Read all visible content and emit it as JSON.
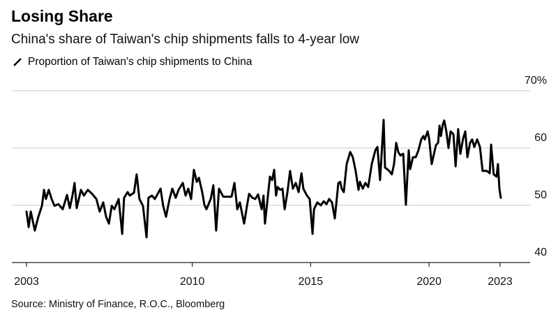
{
  "header": {
    "title": "Losing Share",
    "subtitle": "China's share of Taiwan's chip shipments falls to 4-year low"
  },
  "footer": {
    "source": "Source: Ministry of Finance, R.O.C., Bloomberg"
  },
  "chart_data": {
    "type": "line",
    "title": "Losing Share",
    "subtitle": "China's share of Taiwan's chip shipments falls to 4-year low",
    "legend": [
      {
        "name": "Proportion of Taiwan's chip shipments to China",
        "color": "#000000"
      }
    ],
    "legend_placement": "top-left",
    "xlabel": "",
    "ylabel": "",
    "xlim": [
      2003,
      2024.3
    ],
    "ylim": [
      40,
      70
    ],
    "yticks": [
      {
        "value": 40,
        "label": "40"
      },
      {
        "value": 50,
        "label": "50"
      },
      {
        "value": 60,
        "label": "60"
      },
      {
        "value": 70,
        "label": "70%"
      }
    ],
    "xticks": [
      {
        "value": 2003,
        "label": "2003"
      },
      {
        "value": 2010,
        "label": "2010"
      },
      {
        "value": 2015,
        "label": "2015"
      },
      {
        "value": 2020,
        "label": "2020"
      },
      {
        "value": 2023,
        "label": "2023"
      }
    ],
    "grid": true,
    "yaxis_side": "right",
    "series": [
      {
        "name": "Proportion of Taiwan's chip shipments to China",
        "color": "#000000",
        "points": [
          [
            2003.0,
            48.9
          ],
          [
            2003.09,
            46.2
          ],
          [
            2003.18,
            48.9
          ],
          [
            2003.35,
            45.6
          ],
          [
            2003.5,
            48.0
          ],
          [
            2003.65,
            49.9
          ],
          [
            2003.74,
            52.7
          ],
          [
            2003.82,
            51.1
          ],
          [
            2003.94,
            52.7
          ],
          [
            2004.06,
            51.1
          ],
          [
            2004.18,
            49.9
          ],
          [
            2004.35,
            50.2
          ],
          [
            2004.53,
            49.3
          ],
          [
            2004.71,
            51.8
          ],
          [
            2004.83,
            49.5
          ],
          [
            2004.94,
            51.7
          ],
          [
            2005.03,
            53.9
          ],
          [
            2005.12,
            49.5
          ],
          [
            2005.21,
            51.1
          ],
          [
            2005.3,
            52.7
          ],
          [
            2005.42,
            51.7
          ],
          [
            2005.59,
            52.7
          ],
          [
            2005.77,
            52.0
          ],
          [
            2005.95,
            51.1
          ],
          [
            2006.09,
            48.9
          ],
          [
            2006.24,
            50.5
          ],
          [
            2006.36,
            48.0
          ],
          [
            2006.48,
            46.8
          ],
          [
            2006.6,
            49.9
          ],
          [
            2006.71,
            49.3
          ],
          [
            2006.89,
            51.1
          ],
          [
            2007.04,
            45.0
          ],
          [
            2007.12,
            51.3
          ],
          [
            2007.27,
            52.3
          ],
          [
            2007.36,
            51.7
          ],
          [
            2007.54,
            52.2
          ],
          [
            2007.65,
            55.4
          ],
          [
            2007.77,
            51.1
          ],
          [
            2007.92,
            49.9
          ],
          [
            2008.07,
            44.4
          ],
          [
            2008.15,
            51.3
          ],
          [
            2008.3,
            51.7
          ],
          [
            2008.42,
            51.1
          ],
          [
            2008.66,
            52.9
          ],
          [
            2008.77,
            49.9
          ],
          [
            2008.89,
            48.0
          ],
          [
            2009.04,
            51.1
          ],
          [
            2009.16,
            52.9
          ],
          [
            2009.3,
            51.3
          ],
          [
            2009.42,
            52.7
          ],
          [
            2009.6,
            53.9
          ],
          [
            2009.72,
            51.7
          ],
          [
            2009.83,
            52.9
          ],
          [
            2009.95,
            51.1
          ],
          [
            2010.07,
            56.2
          ],
          [
            2010.19,
            54.1
          ],
          [
            2010.28,
            54.8
          ],
          [
            2010.42,
            52.3
          ],
          [
            2010.51,
            50.1
          ],
          [
            2010.6,
            49.3
          ],
          [
            2010.78,
            51.1
          ],
          [
            2010.89,
            53.5
          ],
          [
            2011.01,
            45.6
          ],
          [
            2011.13,
            52.9
          ],
          [
            2011.31,
            51.5
          ],
          [
            2011.48,
            51.5
          ],
          [
            2011.66,
            51.5
          ],
          [
            2011.78,
            53.9
          ],
          [
            2011.9,
            49.3
          ],
          [
            2012.01,
            50.5
          ],
          [
            2012.19,
            46.8
          ],
          [
            2012.31,
            49.9
          ],
          [
            2012.4,
            52.0
          ],
          [
            2012.54,
            51.3
          ],
          [
            2012.66,
            51.1
          ],
          [
            2012.78,
            51.9
          ],
          [
            2012.93,
            49.3
          ],
          [
            2013.01,
            51.7
          ],
          [
            2013.07,
            46.8
          ],
          [
            2013.28,
            55.0
          ],
          [
            2013.37,
            54.4
          ],
          [
            2013.46,
            56.2
          ],
          [
            2013.54,
            51.7
          ],
          [
            2013.6,
            53.2
          ],
          [
            2013.72,
            52.7
          ],
          [
            2013.81,
            52.9
          ],
          [
            2013.9,
            49.3
          ],
          [
            2014.02,
            52.3
          ],
          [
            2014.13,
            56.0
          ],
          [
            2014.25,
            52.9
          ],
          [
            2014.37,
            53.9
          ],
          [
            2014.49,
            52.3
          ],
          [
            2014.61,
            55.6
          ],
          [
            2014.69,
            52.9
          ],
          [
            2014.84,
            51.7
          ],
          [
            2014.96,
            51.1
          ],
          [
            2015.08,
            45.0
          ],
          [
            2015.14,
            49.3
          ],
          [
            2015.28,
            50.5
          ],
          [
            2015.43,
            50.0
          ],
          [
            2015.55,
            50.7
          ],
          [
            2015.67,
            50.2
          ],
          [
            2015.78,
            51.1
          ],
          [
            2015.9,
            50.5
          ],
          [
            2016.02,
            47.7
          ],
          [
            2016.17,
            53.9
          ],
          [
            2016.25,
            54.1
          ],
          [
            2016.31,
            52.9
          ],
          [
            2016.4,
            52.3
          ],
          [
            2016.52,
            57.2
          ],
          [
            2016.67,
            59.3
          ],
          [
            2016.78,
            58.4
          ],
          [
            2016.9,
            56.0
          ],
          [
            2017.02,
            52.7
          ],
          [
            2017.08,
            54.1
          ],
          [
            2017.2,
            52.9
          ],
          [
            2017.31,
            53.9
          ],
          [
            2017.43,
            53.2
          ],
          [
            2017.58,
            57.2
          ],
          [
            2017.73,
            59.6
          ],
          [
            2017.82,
            60.2
          ],
          [
            2017.93,
            54.4
          ],
          [
            2018.08,
            64.9
          ],
          [
            2018.14,
            56.6
          ],
          [
            2018.32,
            56.0
          ],
          [
            2018.43,
            55.4
          ],
          [
            2018.52,
            57.2
          ],
          [
            2018.61,
            60.9
          ],
          [
            2018.7,
            59.3
          ],
          [
            2018.79,
            58.7
          ],
          [
            2018.91,
            59.0
          ],
          [
            2019.02,
            50.1
          ],
          [
            2019.14,
            59.6
          ],
          [
            2019.2,
            56.3
          ],
          [
            2019.32,
            58.4
          ],
          [
            2019.44,
            58.4
          ],
          [
            2019.55,
            59.6
          ],
          [
            2019.67,
            61.5
          ],
          [
            2019.76,
            62.1
          ],
          [
            2019.82,
            61.5
          ],
          [
            2019.94,
            62.9
          ],
          [
            2020.0,
            61.7
          ],
          [
            2020.11,
            57.2
          ],
          [
            2020.29,
            60.5
          ],
          [
            2020.38,
            60.9
          ],
          [
            2020.44,
            63.9
          ],
          [
            2020.5,
            62.1
          ],
          [
            2020.58,
            64.1
          ],
          [
            2020.64,
            64.8
          ],
          [
            2020.73,
            62.9
          ],
          [
            2020.82,
            60.0
          ],
          [
            2020.91,
            62.9
          ],
          [
            2021.03,
            62.4
          ],
          [
            2021.12,
            56.8
          ],
          [
            2021.23,
            63.3
          ],
          [
            2021.32,
            59.0
          ],
          [
            2021.44,
            61.7
          ],
          [
            2021.53,
            62.9
          ],
          [
            2021.62,
            58.4
          ],
          [
            2021.73,
            60.9
          ],
          [
            2021.82,
            61.5
          ],
          [
            2021.91,
            60.2
          ],
          [
            2022.03,
            61.5
          ],
          [
            2022.15,
            60.2
          ],
          [
            2022.26,
            56.0
          ],
          [
            2022.44,
            56.0
          ],
          [
            2022.56,
            55.6
          ],
          [
            2022.62,
            60.6
          ],
          [
            2022.73,
            55.4
          ],
          [
            2022.85,
            55.0
          ],
          [
            2022.91,
            57.2
          ],
          [
            2022.97,
            52.9
          ],
          [
            2023.03,
            51.3
          ]
        ]
      }
    ]
  }
}
